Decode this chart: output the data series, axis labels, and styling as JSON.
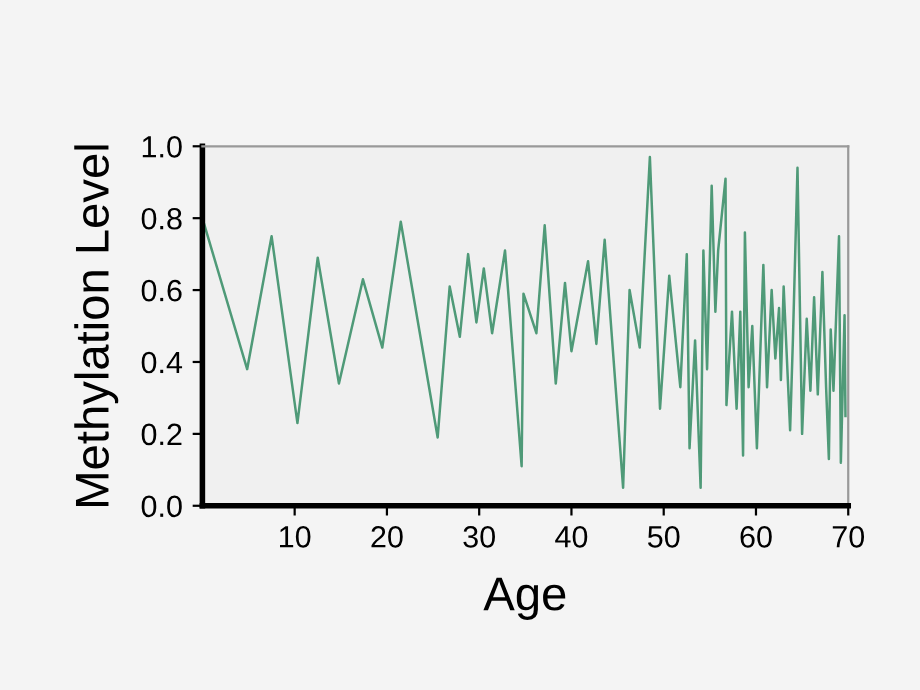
{
  "chart_data": {
    "type": "line",
    "xlabel": "Age",
    "ylabel": "Methylation Level",
    "xlim": [
      0,
      70
    ],
    "ylim": [
      0,
      1
    ],
    "xticks": [
      10,
      20,
      30,
      40,
      50,
      60,
      70
    ],
    "yticks": [
      {
        "value": 0,
        "label": "0.0"
      },
      0.2,
      0.4,
      0.6,
      0.8,
      {
        "value": 1,
        "label": "1.0"
      }
    ],
    "grid": false,
    "legend": false,
    "marker": "none",
    "line_style": "solid",
    "series": [
      {
        "color": "#4f9a78",
        "x": [
          0,
          4.85,
          7.5,
          10.3,
          12.5,
          14.8,
          17.4,
          19.5,
          21.5,
          25.5,
          26.8,
          27.9,
          28.8,
          29.7,
          30.5,
          31.4,
          32.8,
          34.6,
          34.8,
          36.2,
          37.1,
          38.3,
          39.3,
          40.0,
          41.8,
          42.7,
          43.6,
          45.6,
          46.3,
          47.4,
          48.5,
          49.6,
          50.6,
          51.8,
          52.5,
          52.8,
          53.4,
          54.0,
          54.3,
          54.7,
          55.2,
          55.6,
          55.9,
          56.7,
          56.8,
          57.4,
          57.9,
          58.3,
          58.6,
          58.8,
          59.2,
          59.6,
          60.1,
          60.8,
          61.2,
          61.7,
          62.1,
          62.5,
          62.7,
          63.0,
          63.7,
          64.0,
          64.5,
          65.0,
          65.5,
          65.9,
          66.3,
          66.7,
          67.2,
          67.6,
          67.9,
          68.1,
          68.4,
          69.0,
          69.2,
          69.6,
          69.7
        ],
        "values": [
          0.8,
          0.38,
          0.75,
          0.23,
          0.69,
          0.34,
          0.63,
          0.44,
          0.79,
          0.19,
          0.61,
          0.47,
          0.7,
          0.51,
          0.66,
          0.48,
          0.71,
          0.11,
          0.59,
          0.48,
          0.78,
          0.34,
          0.62,
          0.43,
          0.68,
          0.45,
          0.74,
          0.05,
          0.6,
          0.44,
          0.97,
          0.27,
          0.64,
          0.33,
          0.7,
          0.16,
          0.46,
          0.05,
          0.71,
          0.38,
          0.89,
          0.54,
          0.71,
          0.91,
          0.28,
          0.54,
          0.27,
          0.54,
          0.14,
          0.76,
          0.33,
          0.5,
          0.16,
          0.67,
          0.33,
          0.6,
          0.41,
          0.55,
          0.35,
          0.61,
          0.21,
          0.46,
          0.94,
          0.2,
          0.52,
          0.32,
          0.58,
          0.31,
          0.65,
          0.33,
          0.13,
          0.49,
          0.32,
          0.75,
          0.12,
          0.53,
          0.25
        ]
      }
    ]
  }
}
